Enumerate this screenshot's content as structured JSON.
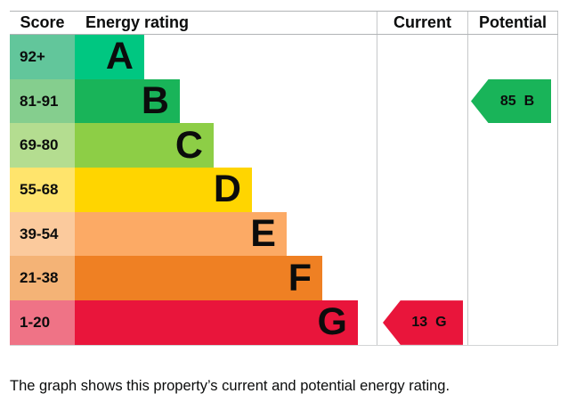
{
  "chart_data": {
    "type": "bar",
    "orientation": "horizontal",
    "title": "Energy rating",
    "columns": {
      "score": "Score",
      "rating": "Energy rating",
      "current": "Current",
      "potential": "Potential"
    },
    "bands": [
      {
        "letter": "A",
        "score": "92+",
        "width_pct": 23.0,
        "color": "#00c781",
        "tint": "#62c69b"
      },
      {
        "letter": "B",
        "score": "81-91",
        "width_pct": 34.8,
        "color": "#19b459",
        "tint": "#85ce8e"
      },
      {
        "letter": "C",
        "score": "69-80",
        "width_pct": 46.0,
        "color": "#8dce46",
        "tint": "#b4dd90"
      },
      {
        "letter": "D",
        "score": "55-68",
        "width_pct": 58.7,
        "color": "#ffd500",
        "tint": "#ffe46c"
      },
      {
        "letter": "E",
        "score": "39-54",
        "width_pct": 70.2,
        "color": "#fcaa65",
        "tint": "#fbca9d"
      },
      {
        "letter": "F",
        "score": "21-38",
        "width_pct": 82.0,
        "color": "#ef8023",
        "tint": "#f4b376"
      },
      {
        "letter": "G",
        "score": "1-20",
        "width_pct": 93.8,
        "color": "#e9153b",
        "tint": "#ef7386"
      }
    ],
    "current": {
      "value": 13,
      "band": "G",
      "band_index": 6,
      "color": "#e9153b"
    },
    "potential": {
      "value": 85,
      "band": "B",
      "band_index": 1,
      "color": "#19b459"
    }
  },
  "caption": "The graph shows this property’s current and potential energy rating."
}
